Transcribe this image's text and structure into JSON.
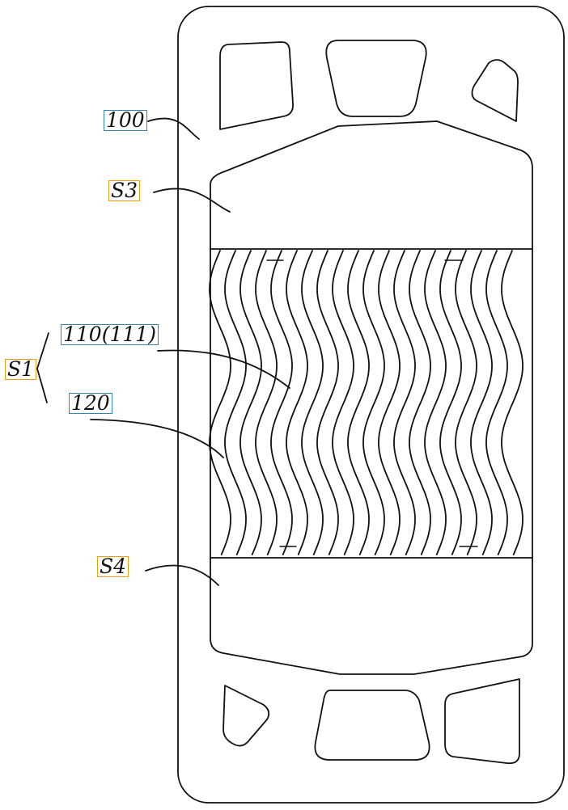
{
  "labels": {
    "plate": "100",
    "zone_top": "S3",
    "heat_exchange_zone": "S1",
    "ridge": "110(111)",
    "groove": "120",
    "zone_bottom": "S4"
  },
  "colors": {
    "line": "#111111",
    "label_box_blue": "#2e86c1",
    "label_box_orange": "#f39c12"
  }
}
